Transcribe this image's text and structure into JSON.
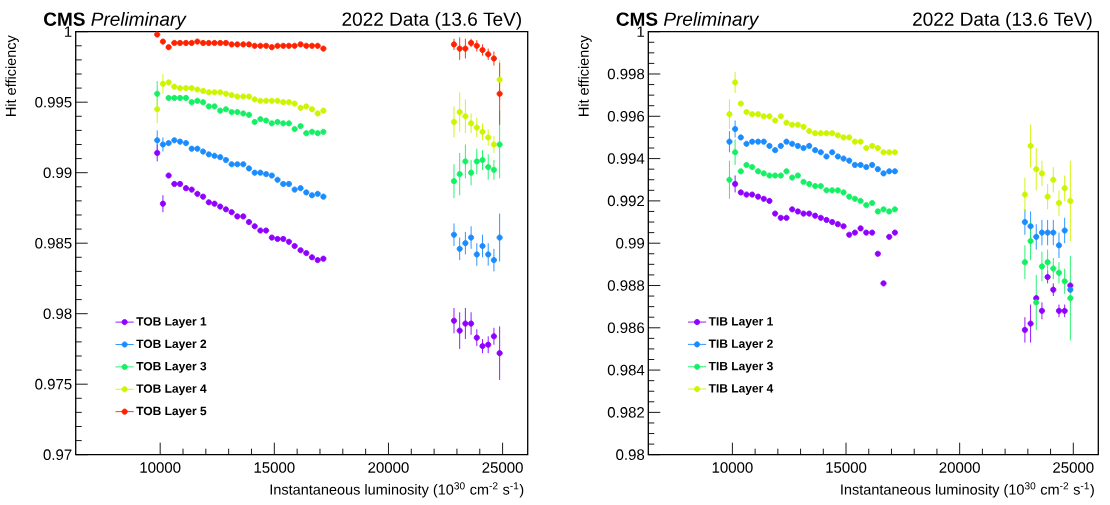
{
  "chart_data": [
    {
      "type": "scatter",
      "title": "**CMS** *Preliminary*",
      "subtitle": "2022 Data (13.6 TeV)",
      "xlabel": "Instantaneous luminosity (10$^{30}$ cm$^{-2}$ s$^{-1}$)",
      "ylabel": "Hit efficiency",
      "x": [
        9870,
        10120,
        10370,
        10620,
        10870,
        11130,
        11380,
        11630,
        11880,
        12130,
        12380,
        12630,
        12880,
        13130,
        13380,
        13640,
        13890,
        14140,
        14390,
        14640,
        14890,
        15140,
        15390,
        15640,
        15890,
        16150,
        16400,
        16650,
        16900,
        17150,
        22870,
        23120,
        23370,
        23620,
        23870,
        24120,
        24370,
        24620,
        24870
      ],
      "series": [
        {
          "name": "TOB Layer 1",
          "color": "#8f00ff",
          "values": [
            0.9914,
            0.9878,
            0.9898,
            0.9892,
            0.9892,
            0.9889,
            0.9888,
            0.9885,
            0.9883,
            0.9879,
            0.9878,
            0.9876,
            0.9874,
            0.9872,
            0.9869,
            0.9869,
            0.9865,
            0.9862,
            0.9859,
            0.9859,
            0.9854,
            0.9853,
            0.9853,
            0.9851,
            0.9848,
            0.9845,
            0.9843,
            0.984,
            0.9838,
            0.9839,
            0.9795,
            0.9788,
            0.9793,
            0.9793,
            0.9783,
            0.9777,
            0.9778,
            0.9784,
            0.9772
          ],
          "errors": [
            0.0006,
            0.0006,
            null,
            null,
            null,
            null,
            null,
            null,
            null,
            null,
            null,
            null,
            null,
            null,
            null,
            null,
            null,
            null,
            null,
            null,
            null,
            null,
            null,
            null,
            null,
            null,
            null,
            null,
            null,
            null,
            0.0009,
            0.0013,
            0.0011,
            0.0008,
            0.0006,
            0.0005,
            0.0006,
            0.0006,
            0.0019
          ]
        },
        {
          "name": "TOB Layer 2",
          "color": "#1a8cff",
          "values": [
            0.9923,
            0.992,
            0.9921,
            0.9923,
            0.9922,
            0.9921,
            0.9917,
            0.9917,
            0.9915,
            0.9913,
            0.9912,
            0.9911,
            0.9909,
            0.9906,
            0.9906,
            0.9906,
            0.9903,
            0.99,
            0.99,
            0.9899,
            0.9898,
            0.9895,
            0.9892,
            0.9892,
            0.9888,
            0.9889,
            0.9886,
            0.9884,
            0.9885,
            0.9883,
            0.9856,
            0.9846,
            0.985,
            0.9854,
            0.9842,
            0.9848,
            0.9842,
            0.9838,
            0.9854
          ],
          "errors": [
            0.0007,
            0.0005,
            null,
            null,
            null,
            null,
            null,
            null,
            null,
            null,
            null,
            null,
            null,
            null,
            null,
            null,
            null,
            null,
            null,
            null,
            null,
            null,
            null,
            null,
            null,
            null,
            null,
            null,
            null,
            null,
            0.0008,
            0.0008,
            0.0008,
            0.0008,
            0.0008,
            0.0008,
            0.0008,
            0.0008,
            0.0017
          ]
        },
        {
          "name": "TOB Layer 3",
          "color": "#14f064",
          "values": [
            0.9956,
            null,
            0.9953,
            0.9953,
            0.9953,
            0.9953,
            0.995,
            0.9951,
            0.995,
            0.9947,
            0.9947,
            0.9944,
            0.9945,
            0.9943,
            0.9943,
            0.9942,
            0.9941,
            0.9936,
            0.9938,
            0.9937,
            0.9935,
            0.9936,
            0.9935,
            0.9935,
            0.9931,
            0.9933,
            0.9928,
            0.9929,
            0.9928,
            0.9929,
            0.9894,
            0.9899,
            0.9908,
            0.99,
            0.9908,
            0.9909,
            0.9904,
            0.9902,
            0.992
          ],
          "errors": [
            0.0009,
            null,
            null,
            null,
            null,
            null,
            null,
            null,
            null,
            null,
            null,
            null,
            null,
            null,
            null,
            null,
            null,
            null,
            null,
            null,
            null,
            null,
            null,
            null,
            null,
            null,
            null,
            null,
            null,
            null,
            0.0012,
            0.0015,
            0.0012,
            0.0009,
            0.0009,
            0.0007,
            0.0009,
            0.0007,
            0.0024
          ]
        },
        {
          "name": "TOB Layer 4",
          "color": "#ccf500",
          "values": [
            0.9945,
            0.9963,
            0.9964,
            0.9961,
            0.996,
            0.996,
            0.996,
            0.9959,
            0.9958,
            0.9957,
            0.9957,
            0.9957,
            0.9956,
            0.9955,
            0.9954,
            0.9954,
            0.9954,
            0.9952,
            0.9951,
            0.9951,
            0.9951,
            0.9951,
            0.995,
            0.995,
            0.9949,
            0.9946,
            0.9947,
            0.9945,
            0.9942,
            0.9944,
            0.9936,
            0.9943,
            0.994,
            0.9935,
            0.9932,
            0.9929,
            0.9925,
            0.992,
            0.9966
          ],
          "errors": [
            0.001,
            0.0007,
            null,
            null,
            null,
            null,
            null,
            null,
            null,
            null,
            null,
            null,
            null,
            null,
            null,
            null,
            null,
            null,
            null,
            null,
            null,
            null,
            null,
            null,
            null,
            null,
            null,
            null,
            null,
            null,
            0.0011,
            0.0014,
            0.0012,
            0.0007,
            0.0007,
            0.0006,
            0.0006,
            0.0006,
            0.0014
          ]
        },
        {
          "name": "TOB Layer 5",
          "color": "#ff2200",
          "values": [
            0.9998,
            0.9993,
            0.9989,
            0.9992,
            0.9992,
            0.9992,
            0.9992,
            0.9993,
            0.9992,
            0.9992,
            0.9992,
            0.9992,
            0.9992,
            0.9991,
            0.9991,
            0.9991,
            0.9991,
            0.999,
            0.999,
            0.999,
            0.9989,
            0.999,
            0.999,
            0.999,
            0.999,
            0.9991,
            0.999,
            0.999,
            0.999,
            0.9988,
            0.9991,
            0.9988,
            0.9988,
            0.9992,
            0.999,
            0.9987,
            0.9984,
            0.9981,
            0.9956
          ],
          "errors": [
            null,
            null,
            null,
            null,
            null,
            null,
            null,
            null,
            null,
            null,
            null,
            null,
            null,
            null,
            null,
            null,
            null,
            null,
            null,
            null,
            null,
            null,
            null,
            null,
            null,
            null,
            null,
            null,
            null,
            null,
            0.0004,
            0.0008,
            0.0007,
            0.0003,
            0.0004,
            0.0004,
            0.0004,
            0.0005,
            0.0022
          ]
        }
      ],
      "xlim": [
        6300,
        26100
      ],
      "ylim": [
        0.97,
        1
      ],
      "xticks": [
        10000,
        15000,
        20000,
        25000
      ],
      "yticks": [
        0.97,
        0.975,
        0.98,
        0.985,
        0.99,
        0.995,
        1
      ],
      "legend": "bottom left",
      "marker": "circle"
    },
    {
      "type": "scatter",
      "title": "**CMS** *Preliminary*",
      "subtitle": "2022 Data (13.6 TeV)",
      "xlabel": "Instantaneous luminosity (10$^{30}$ cm$^{-2}$ s$^{-1}$)",
      "ylabel": "Hit efficiency",
      "x": [
        9870,
        10120,
        10370,
        10620,
        10870,
        11130,
        11380,
        11630,
        11880,
        12130,
        12380,
        12630,
        12880,
        13130,
        13380,
        13640,
        13890,
        14140,
        14390,
        14640,
        14890,
        15140,
        15390,
        15640,
        15890,
        16150,
        16400,
        16650,
        16900,
        17150,
        22870,
        23120,
        23370,
        23620,
        23870,
        24120,
        24370,
        24620,
        24870
      ],
      "series": [
        {
          "name": "TIB Layer 1",
          "color": "#8f00ff",
          "values": [
            null,
            0.9928,
            0.9924,
            0.9923,
            0.9923,
            0.9922,
            0.9921,
            0.992,
            0.9914,
            0.9912,
            0.9912,
            0.9916,
            0.9915,
            0.9914,
            0.9914,
            0.9913,
            0.9912,
            0.9911,
            0.991,
            0.9909,
            0.9908,
            0.9904,
            0.9905,
            0.9907,
            0.9905,
            0.9905,
            0.9895,
            0.9881,
            0.9903,
            0.9905,
            0.9859,
            0.9862,
            0.9874,
            0.9868,
            0.9884,
            0.9878,
            0.9868,
            0.9868,
            0.988
          ],
          "errors": [
            null,
            0.0004,
            null,
            null,
            null,
            null,
            null,
            null,
            null,
            null,
            null,
            null,
            null,
            null,
            null,
            null,
            null,
            null,
            null,
            null,
            null,
            null,
            null,
            null,
            null,
            null,
            null,
            null,
            null,
            null,
            0.0006,
            0.0009,
            null,
            0.0004,
            0.0003,
            0.0003,
            0.0003,
            0.0003,
            null
          ]
        },
        {
          "name": "TIB Layer 2",
          "color": "#1a8cff",
          "values": [
            0.9948,
            0.9954,
            0.995,
            0.9947,
            0.9948,
            0.9948,
            0.9948,
            0.9946,
            0.9944,
            0.9946,
            0.9948,
            0.9947,
            0.9946,
            0.9945,
            0.9946,
            0.9944,
            0.9943,
            0.9941,
            0.9943,
            0.9941,
            0.994,
            0.9939,
            0.9937,
            0.9937,
            0.9936,
            0.9937,
            0.9935,
            0.9933,
            0.9934,
            0.9934,
            0.991,
            0.9908,
            0.9903,
            0.9905,
            0.9905,
            0.9905,
            0.9899,
            0.9906,
            0.9878
          ],
          "errors": [
            0.0005,
            0.0004,
            null,
            null,
            null,
            null,
            null,
            null,
            null,
            null,
            null,
            null,
            null,
            null,
            null,
            null,
            null,
            null,
            null,
            null,
            null,
            null,
            null,
            null,
            null,
            null,
            null,
            null,
            null,
            null,
            0.0006,
            0.0007,
            0.0006,
            0.0006,
            0.0006,
            0.0006,
            0.0006,
            0.0006,
            null
          ]
        },
        {
          "name": "TIB Layer 3",
          "color": "#14f064",
          "values": [
            0.993,
            0.9943,
            0.9934,
            0.9937,
            0.9936,
            0.9934,
            0.9933,
            0.9932,
            0.9932,
            0.9932,
            0.9934,
            0.9931,
            0.9932,
            0.9929,
            0.9928,
            0.9927,
            0.9927,
            0.9925,
            0.9925,
            0.9925,
            0.9924,
            0.9922,
            0.9921,
            0.992,
            0.9918,
            0.9919,
            0.9915,
            0.9916,
            0.9915,
            0.9916,
            0.9891,
            0.9901,
            0.9872,
            0.9889,
            0.9891,
            0.9888,
            0.9886,
            0.9882,
            0.9874
          ],
          "errors": [
            0.0009,
            0.0006,
            null,
            null,
            null,
            null,
            null,
            null,
            null,
            null,
            null,
            null,
            null,
            null,
            null,
            null,
            null,
            null,
            null,
            null,
            null,
            null,
            null,
            null,
            null,
            null,
            null,
            null,
            null,
            null,
            0.0008,
            0.0009,
            0.0013,
            0.0007,
            0.0006,
            0.0005,
            0.0005,
            0.0006,
            0.002
          ]
        },
        {
          "name": "TIB Layer 4",
          "color": "#ccf500",
          "values": [
            0.9961,
            0.9976,
            0.9966,
            0.9962,
            0.9961,
            0.9961,
            0.996,
            0.996,
            0.9958,
            0.996,
            0.9957,
            0.9956,
            0.9956,
            0.9955,
            0.9953,
            0.9952,
            0.9952,
            0.9952,
            0.9952,
            0.9951,
            0.995,
            0.995,
            0.9948,
            0.9948,
            0.9945,
            0.9946,
            0.9945,
            0.9943,
            0.9943,
            0.9943,
            0.9923,
            0.9946,
            0.9935,
            0.9933,
            0.9922,
            0.993,
            0.9919,
            0.9926,
            0.992
          ],
          "errors": [
            0.0007,
            0.0005,
            null,
            null,
            null,
            null,
            null,
            null,
            null,
            null,
            null,
            null,
            null,
            null,
            null,
            null,
            null,
            null,
            null,
            null,
            null,
            null,
            null,
            null,
            null,
            null,
            null,
            null,
            null,
            null,
            0.0008,
            0.001,
            0.001,
            0.0006,
            0.0006,
            0.0006,
            0.0006,
            0.0006,
            0.0019
          ]
        }
      ],
      "xlim": [
        6300,
        26100
      ],
      "ylim": [
        0.98,
        1
      ],
      "xticks": [
        10000,
        15000,
        20000,
        25000
      ],
      "yticks": [
        0.98,
        0.982,
        0.984,
        0.986,
        0.988,
        0.99,
        0.992,
        0.994,
        0.996,
        0.998,
        1
      ],
      "legend": "bottom left",
      "marker": "circle"
    }
  ]
}
